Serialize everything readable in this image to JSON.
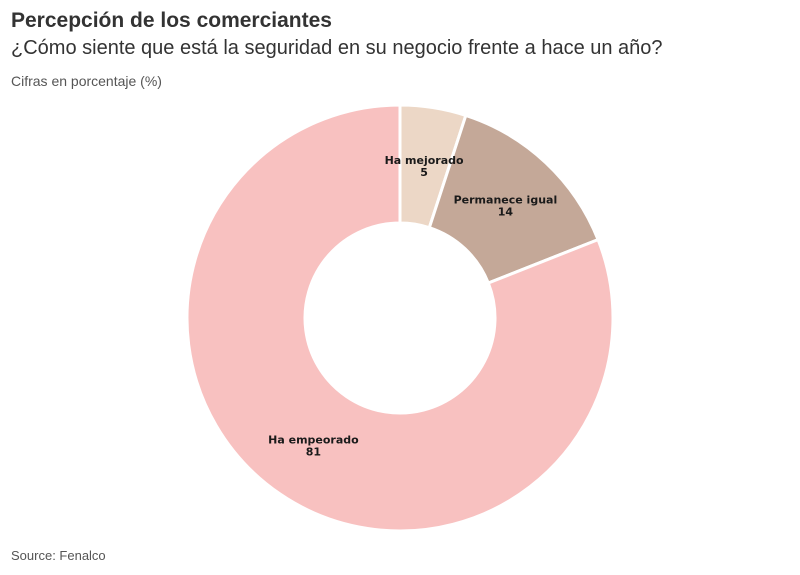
{
  "header": {
    "title": "Percepción de los comerciantes",
    "subtitle": "¿Cómo siente que está la seguridad en su negocio frente a hace un año?",
    "units": "Cifras en porcentaje (%)"
  },
  "footer": {
    "source": "Source: Fenalco"
  },
  "chart_data": {
    "type": "pie",
    "donut": true,
    "title": "Percepción de los comerciantes",
    "subtitle": "¿Cómo siente que está la seguridad en su negocio frente a hace un año?",
    "categories": [
      "Ha mejorado",
      "Permanece igual",
      "Ha empeorado"
    ],
    "values": [
      5,
      14,
      81
    ],
    "colors": [
      "#ecd7c6",
      "#c4a898",
      "#f8c1c0"
    ],
    "legend": "none"
  }
}
